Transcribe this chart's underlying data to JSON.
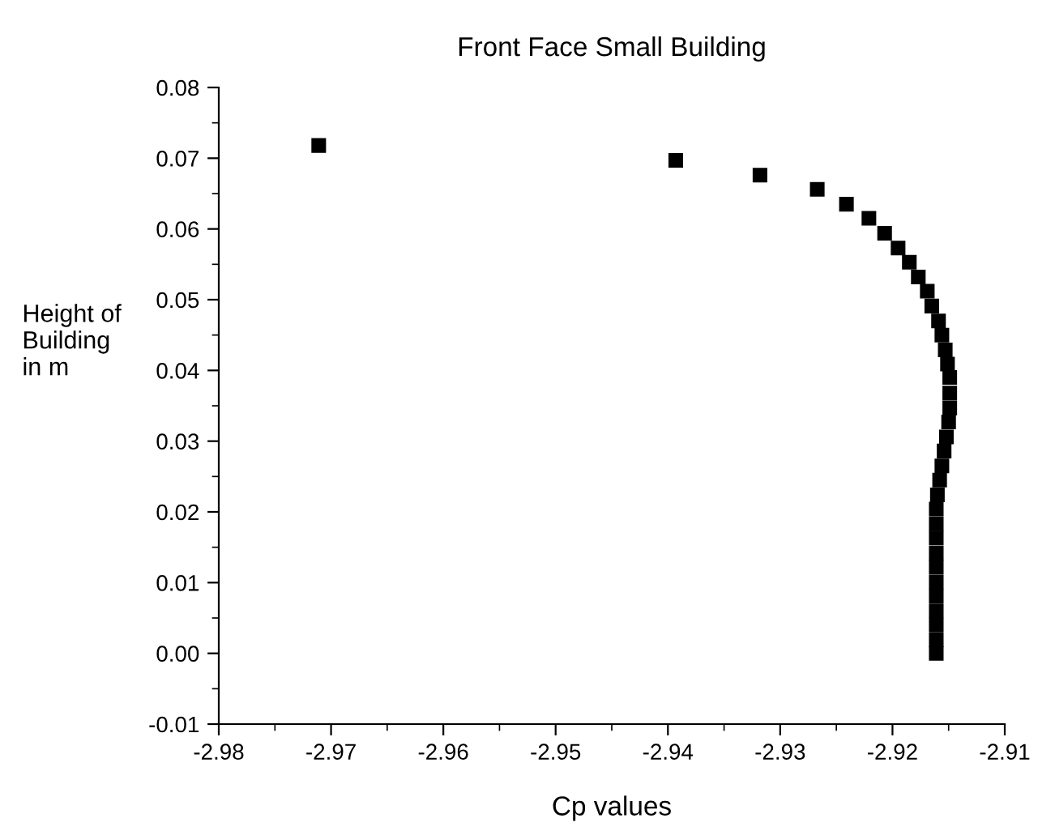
{
  "chart_data": {
    "type": "scatter",
    "title": "Front Face Small Building",
    "xlabel": "Cp values",
    "ylabel": "Height of\nBuilding\nin m",
    "series": [
      {
        "color": "#000000",
        "marker": "square",
        "x": [
          -2.9711,
          -2.9393,
          -2.9318,
          -2.9267,
          -2.9241,
          -2.9221,
          -2.9207,
          -2.9195,
          -2.9185,
          -2.9177,
          -2.9169,
          -2.9165,
          -2.9159,
          -2.9156,
          -2.9153,
          -2.9151,
          -2.9149,
          -2.9149,
          -2.9149,
          -2.915,
          -2.9152,
          -2.9154,
          -2.9156,
          -2.9158,
          -2.916,
          -2.9161,
          -2.9161,
          -2.9161,
          -2.9161,
          -2.9161,
          -2.9161,
          -2.9161,
          -2.9161,
          -2.9161,
          -2.9161,
          -2.9161
        ],
        "values": [
          0.0718,
          0.0697,
          0.0676,
          0.0656,
          0.0635,
          0.0615,
          0.0594,
          0.0573,
          0.0553,
          0.0532,
          0.0512,
          0.0491,
          0.047,
          0.045,
          0.0429,
          0.0409,
          0.039,
          0.0368,
          0.0347,
          0.0327,
          0.0306,
          0.0286,
          0.0265,
          0.0245,
          0.0224,
          0.0204,
          0.0183,
          0.0163,
          0.0142,
          0.0122,
          0.0101,
          0.0081,
          0.006,
          0.004,
          0.0019,
          0.0
        ]
      }
    ],
    "xlim": [
      -2.98,
      -2.91
    ],
    "xticks": [
      -2.98,
      -2.97,
      -2.96,
      -2.95,
      -2.94,
      -2.93,
      -2.92,
      -2.91
    ],
    "ylim": [
      -0.01,
      0.08
    ],
    "yticks": [
      -0.01,
      {
        "value": 0.0,
        "label": "0.00"
      },
      0.01,
      0.02,
      0.03,
      0.04,
      0.05,
      0.06,
      0.07,
      0.08
    ],
    "grid": false,
    "legend": false
  }
}
